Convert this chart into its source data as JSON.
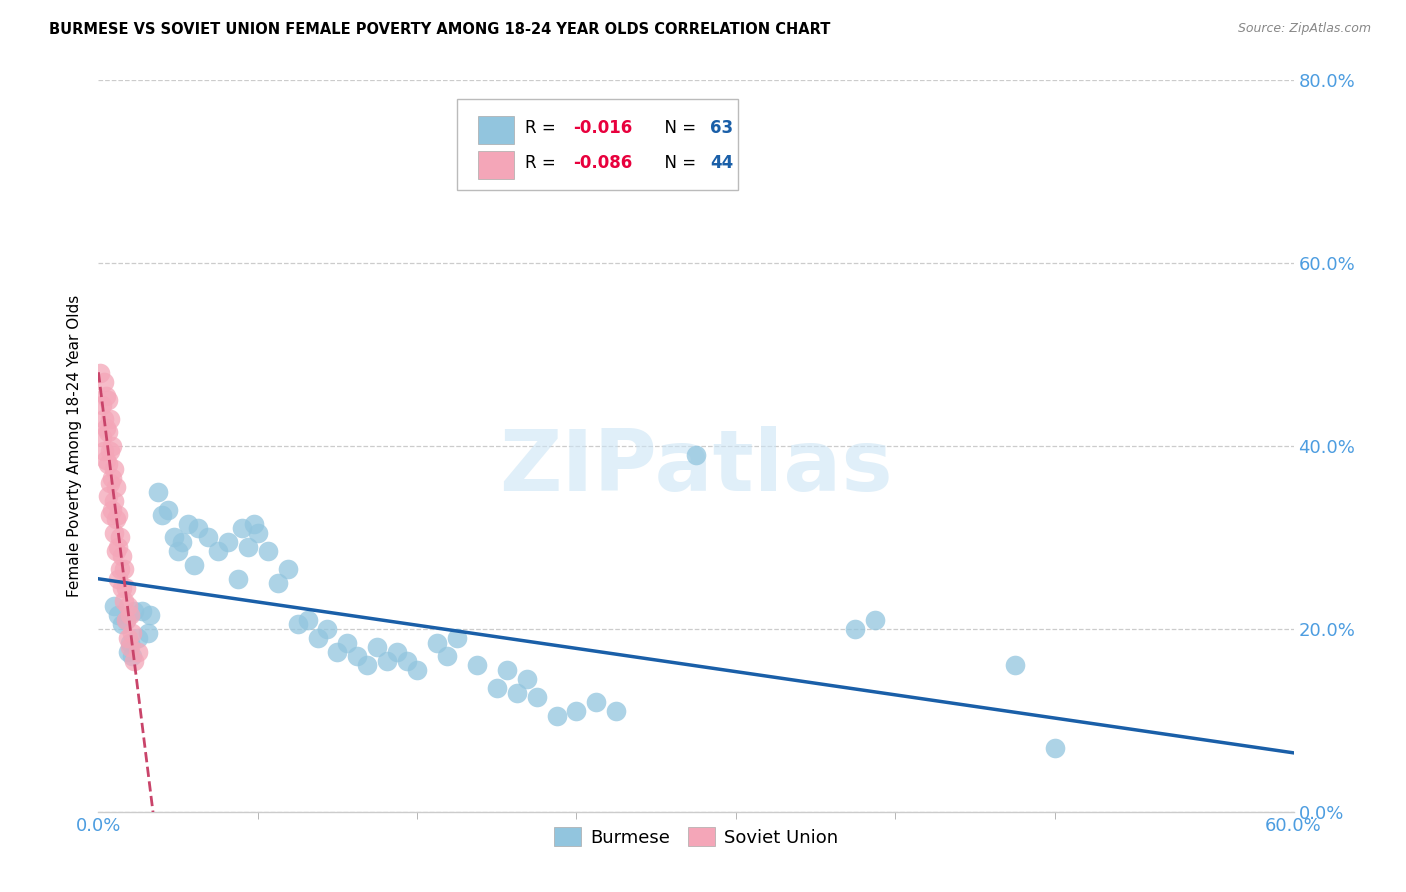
{
  "title": "BURMESE VS SOVIET UNION FEMALE POVERTY AMONG 18-24 YEAR OLDS CORRELATION CHART",
  "source": "Source: ZipAtlas.com",
  "ylabel": "Female Poverty Among 18-24 Year Olds",
  "xlim": [
    0.0,
    0.6
  ],
  "ylim": [
    0.0,
    0.8
  ],
  "xtick_labels": [
    "0.0%",
    "60.0%"
  ],
  "xtick_positions": [
    0.0,
    0.6
  ],
  "ytick_labels": [
    "0.0%",
    "20.0%",
    "40.0%",
    "60.0%",
    "80.0%"
  ],
  "ytick_positions": [
    0.0,
    0.2,
    0.4,
    0.6,
    0.8
  ],
  "burmese_color": "#92c5de",
  "soviet_color": "#f4a6b8",
  "burmese_line_color": "#1a5fa8",
  "soviet_line_color": "#c9446a",
  "burmese_R": -0.016,
  "burmese_N": 63,
  "soviet_R": -0.086,
  "soviet_N": 44,
  "watermark_text": "ZIPatlas",
  "legend_R_color": "#e8003d",
  "legend_N_color": "#1a5fa8",
  "axis_color": "#4d9de0",
  "burmese_x": [
    0.008,
    0.01,
    0.012,
    0.014,
    0.015,
    0.016,
    0.017,
    0.018,
    0.02,
    0.022,
    0.025,
    0.026,
    0.03,
    0.032,
    0.035,
    0.038,
    0.04,
    0.042,
    0.045,
    0.048,
    0.05,
    0.055,
    0.06,
    0.065,
    0.07,
    0.072,
    0.075,
    0.078,
    0.08,
    0.085,
    0.09,
    0.095,
    0.1,
    0.105,
    0.11,
    0.115,
    0.12,
    0.125,
    0.13,
    0.135,
    0.14,
    0.145,
    0.15,
    0.155,
    0.16,
    0.17,
    0.175,
    0.18,
    0.19,
    0.2,
    0.205,
    0.21,
    0.215,
    0.22,
    0.23,
    0.24,
    0.25,
    0.26,
    0.3,
    0.38,
    0.39,
    0.46,
    0.48
  ],
  "burmese_y": [
    0.225,
    0.215,
    0.205,
    0.21,
    0.175,
    0.185,
    0.17,
    0.22,
    0.19,
    0.22,
    0.195,
    0.215,
    0.35,
    0.325,
    0.33,
    0.3,
    0.285,
    0.295,
    0.315,
    0.27,
    0.31,
    0.3,
    0.285,
    0.295,
    0.255,
    0.31,
    0.29,
    0.315,
    0.305,
    0.285,
    0.25,
    0.265,
    0.205,
    0.21,
    0.19,
    0.2,
    0.175,
    0.185,
    0.17,
    0.16,
    0.18,
    0.165,
    0.175,
    0.165,
    0.155,
    0.185,
    0.17,
    0.19,
    0.16,
    0.135,
    0.155,
    0.13,
    0.145,
    0.125,
    0.105,
    0.11,
    0.12,
    0.11,
    0.39,
    0.2,
    0.21,
    0.16,
    0.07
  ],
  "soviet_x": [
    0.001,
    0.002,
    0.002,
    0.003,
    0.003,
    0.003,
    0.004,
    0.004,
    0.004,
    0.005,
    0.005,
    0.005,
    0.005,
    0.006,
    0.006,
    0.006,
    0.006,
    0.007,
    0.007,
    0.007,
    0.008,
    0.008,
    0.008,
    0.009,
    0.009,
    0.009,
    0.01,
    0.01,
    0.01,
    0.011,
    0.011,
    0.012,
    0.012,
    0.013,
    0.013,
    0.014,
    0.014,
    0.015,
    0.015,
    0.016,
    0.016,
    0.017,
    0.018,
    0.02
  ],
  "soviet_y": [
    0.48,
    0.445,
    0.41,
    0.47,
    0.43,
    0.395,
    0.455,
    0.42,
    0.385,
    0.45,
    0.415,
    0.38,
    0.345,
    0.43,
    0.395,
    0.36,
    0.325,
    0.4,
    0.365,
    0.33,
    0.375,
    0.34,
    0.305,
    0.355,
    0.32,
    0.285,
    0.325,
    0.29,
    0.255,
    0.3,
    0.265,
    0.28,
    0.245,
    0.265,
    0.23,
    0.245,
    0.21,
    0.225,
    0.19,
    0.215,
    0.18,
    0.195,
    0.165,
    0.175
  ]
}
